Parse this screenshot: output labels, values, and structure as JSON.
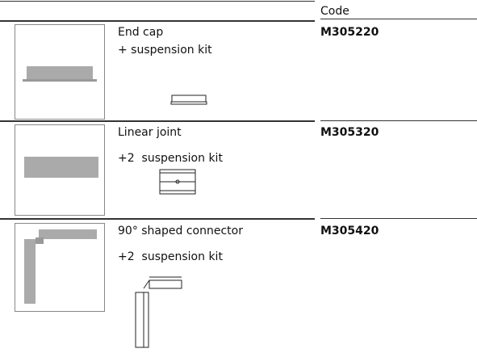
{
  "header": {
    "code_label": "Code"
  },
  "rows": [
    {
      "name": "End cap",
      "kit": "+ suspension kit",
      "code": "M305220"
    },
    {
      "name": "Linear joint",
      "kit": "+2  suspension kit",
      "code": "M305320"
    },
    {
      "name": "90° shaped connector",
      "kit": "+2  suspension kit",
      "code": "M305420"
    }
  ]
}
